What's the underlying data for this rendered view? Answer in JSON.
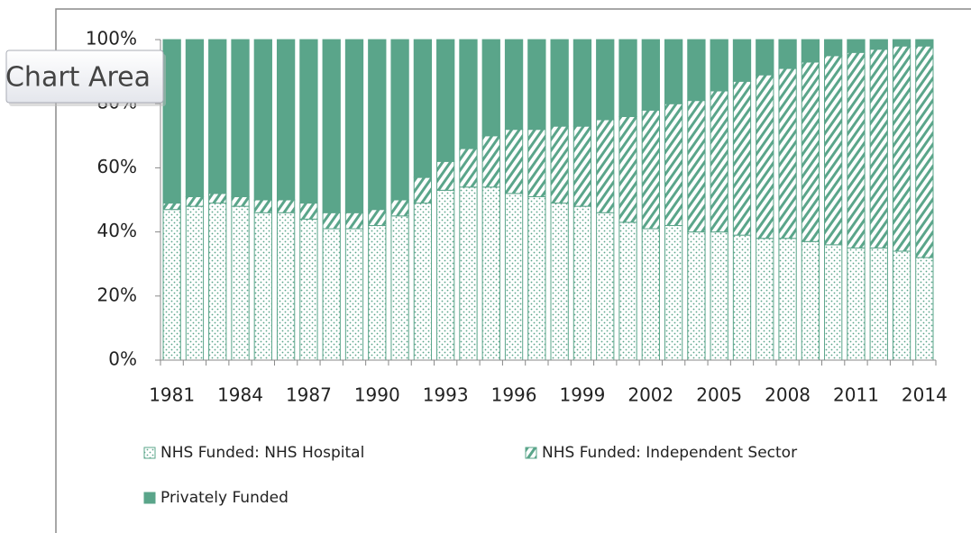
{
  "chart_data": {
    "type": "stacked_bar_100",
    "annotation": "Chart Area",
    "categories": [
      "1981",
      null,
      null,
      "1984",
      null,
      null,
      "1987",
      null,
      null,
      "1990",
      null,
      null,
      "1993",
      null,
      null,
      "1996",
      null,
      null,
      "1999",
      null,
      null,
      "2002",
      null,
      null,
      "2005",
      null,
      null,
      "2008",
      null,
      null,
      "2011",
      null,
      null,
      "2014"
    ],
    "series": [
      {
        "name": "NHS Funded: NHS Hospital",
        "color": "#5aa58a",
        "pattern": "dots",
        "values": [
          47,
          48,
          49,
          48,
          46,
          46,
          44,
          41,
          41,
          42,
          45,
          49,
          53,
          54,
          54,
          52,
          51,
          49,
          48,
          46,
          43,
          41,
          42,
          40,
          40,
          39,
          38,
          38,
          37,
          36,
          35,
          35,
          34,
          32
        ]
      },
      {
        "name": "NHS Funded: Independent Sector",
        "color": "#5aa58a",
        "pattern": "hatch",
        "values": [
          2,
          3,
          3,
          3,
          4,
          4,
          5,
          5,
          5,
          5,
          5,
          8,
          9,
          12,
          16,
          20,
          21,
          24,
          25,
          29,
          33,
          37,
          38,
          41,
          44,
          48,
          51,
          53,
          56,
          59,
          61,
          62,
          64,
          66
        ]
      },
      {
        "name": "Privately Funded",
        "color": "#5aa58a",
        "pattern": "solid",
        "values": [
          51,
          49,
          48,
          49,
          50,
          50,
          51,
          54,
          54,
          53,
          50,
          43,
          38,
          34,
          30,
          28,
          28,
          27,
          27,
          25,
          24,
          22,
          20,
          19,
          16,
          13,
          11,
          9,
          7,
          5,
          4,
          3,
          2,
          2
        ]
      }
    ],
    "ylim": [
      0,
      100
    ],
    "yticks": [
      {
        "value": 0,
        "label": "0%"
      },
      {
        "value": 20,
        "label": "20%"
      },
      {
        "value": 40,
        "label": "40%"
      },
      {
        "value": 60,
        "label": "60%"
      },
      {
        "value": 80,
        "label": "80%"
      },
      {
        "value": 100,
        "label": "100%"
      }
    ],
    "legend": "bottom"
  }
}
